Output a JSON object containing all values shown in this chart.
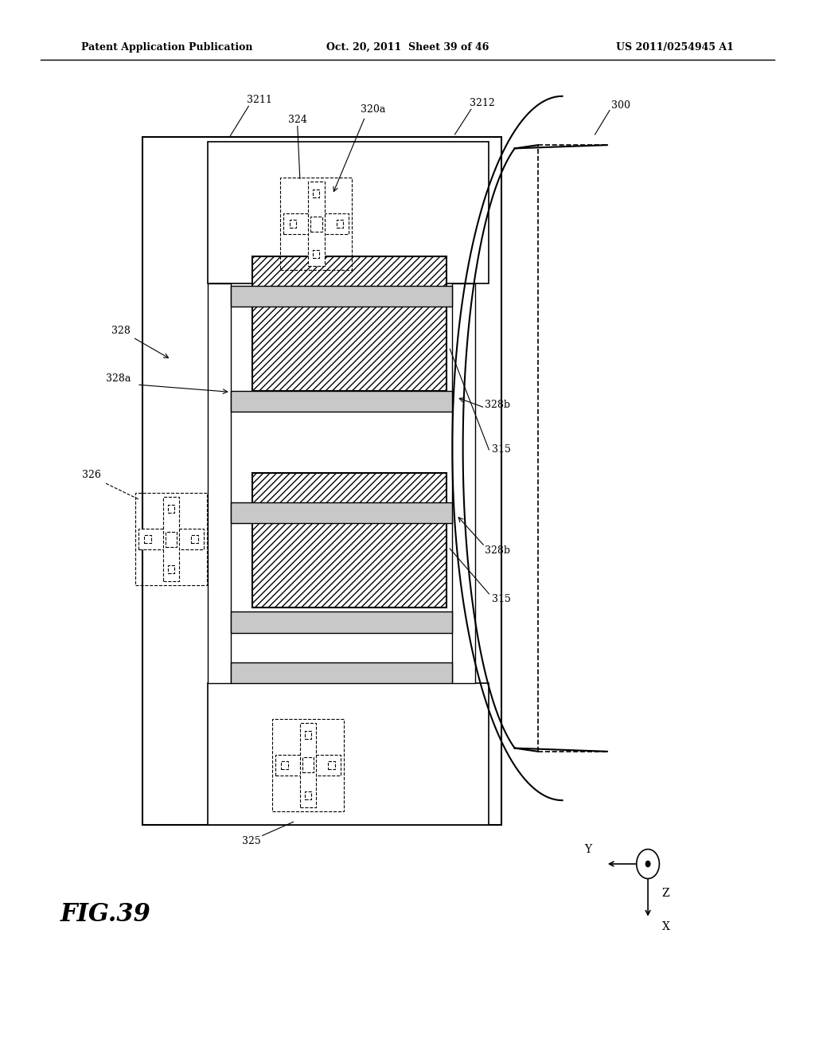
{
  "bg_color": "#ffffff",
  "header_left": "Patent Application Publication",
  "header_mid": "Oct. 20, 2011  Sheet 39 of 46",
  "header_right": "US 2011/0254945 A1",
  "figure_label": "FIG.39"
}
